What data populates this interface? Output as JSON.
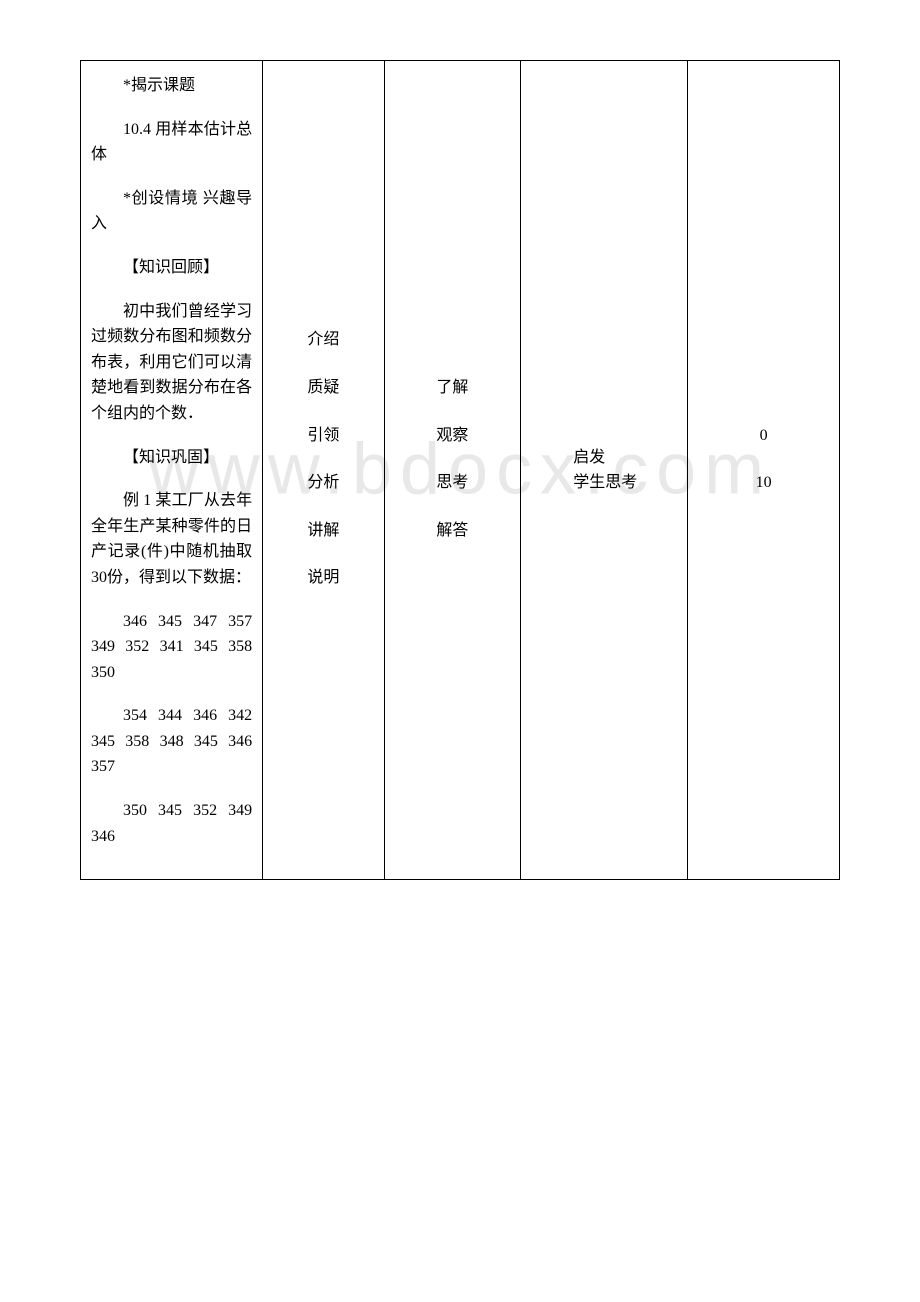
{
  "watermark": "www.bdocx.com",
  "col1": {
    "p1": "*揭示课题",
    "p2": "10.4 用样本估计总体",
    "p3": "*创设情境 兴趣导入",
    "p4": "【知识回顾】",
    "p5": "初中我们曾经学习过频数分布图和频数分布表，利用它们可以清楚地看到数据分布在各个组内的个数．",
    "p6": "【知识巩固】",
    "p7": "例 1  某工厂从去年全年生产某种零件的日产记录(件)中随机抽取 30份，得到以下数据：",
    "data_row1": "346 345 347 357   349 352 341 345 358 350",
    "data_row2": "354 344 346 342 345 358 348 345 346 357",
    "data_row3": "350 345 352 349 346"
  },
  "col2": {
    "l1": "介绍",
    "l2": "质疑",
    "l3": "引领",
    "l4": "分析",
    "l5": "讲解",
    "l6": "说明"
  },
  "col3": {
    "l1": "了解",
    "l2": "观察",
    "l3": "思考",
    "l4": "解答"
  },
  "col4": {
    "l1": "启发",
    "l2": "学生思考"
  },
  "col5": {
    "l1": "0",
    "l2": "10"
  },
  "styles": {
    "font_family": "SimSun",
    "font_size_pt": 12,
    "border_color": "#000000",
    "background_color": "#ffffff",
    "watermark_color": "#e8e8e8"
  }
}
